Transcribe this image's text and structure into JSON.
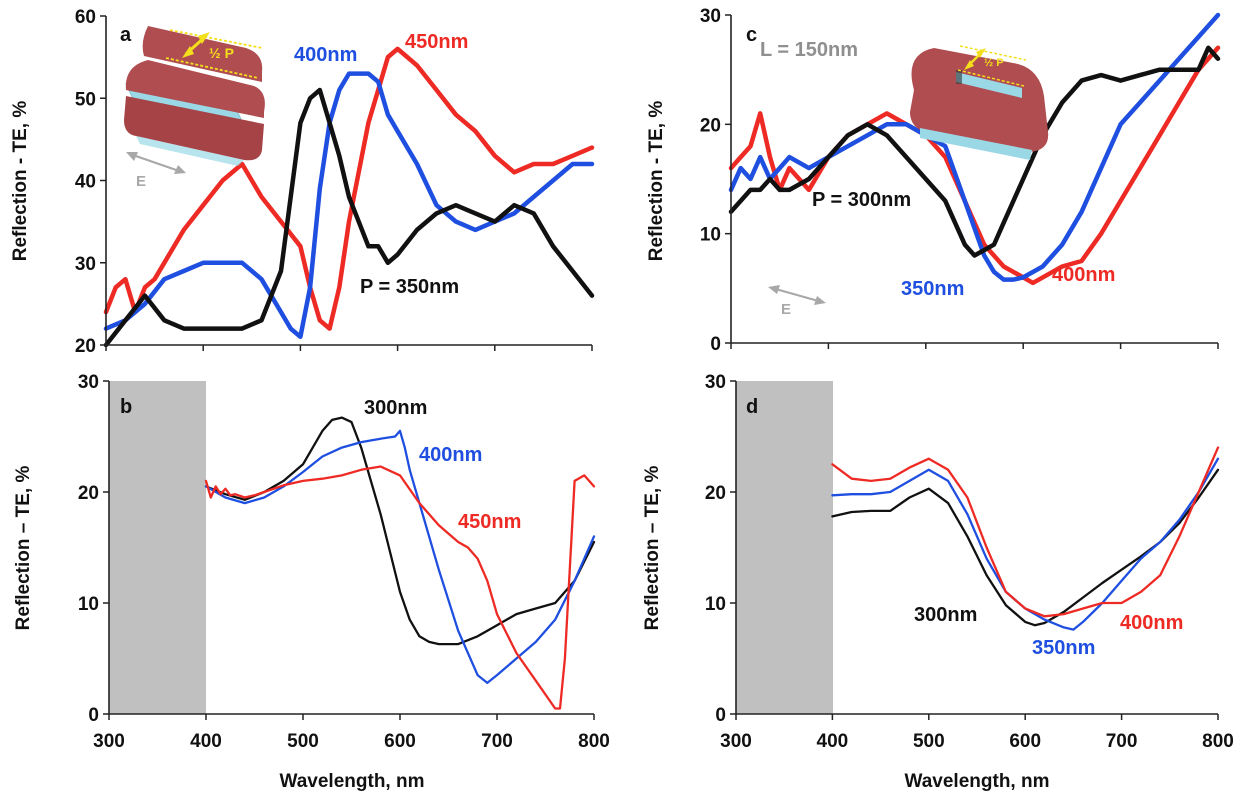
{
  "chart_data": [
    {
      "panel": "a",
      "type": "line",
      "ylabel": "Reflection - TE, %",
      "xlabel": "",
      "xlim": [
        300,
        800
      ],
      "ylim": [
        20,
        60
      ],
      "xticks": [
        "300",
        "400",
        "500",
        "600",
        "700",
        "800"
      ],
      "yticks": [
        "20",
        "30",
        "40",
        "50",
        "60"
      ],
      "x_tick_labels_visible": false,
      "inset": {
        "polarization": "E",
        "dimension": "½ P"
      },
      "series": [
        {
          "label": "450nm",
          "color": "#ee2a24",
          "x": [
            300,
            310,
            320,
            330,
            340,
            350,
            360,
            380,
            400,
            420,
            440,
            460,
            480,
            500,
            510,
            520,
            530,
            540,
            550,
            560,
            570,
            580,
            590,
            600,
            610,
            620,
            640,
            660,
            680,
            700,
            720,
            740,
            760,
            780,
            800
          ],
          "y": [
            24,
            27,
            28,
            24,
            27,
            28,
            30,
            34,
            37,
            40,
            42,
            38,
            35,
            32,
            27,
            23,
            22,
            27,
            35,
            41,
            47,
            51,
            55,
            56,
            55,
            54,
            51,
            48,
            46,
            43,
            41,
            42,
            42,
            43,
            44
          ]
        },
        {
          "label": "400nm",
          "color": "#1f4fe0",
          "x": [
            300,
            320,
            340,
            360,
            380,
            400,
            420,
            440,
            460,
            480,
            490,
            500,
            510,
            520,
            530,
            540,
            550,
            560,
            570,
            580,
            590,
            600,
            620,
            640,
            660,
            680,
            700,
            720,
            740,
            760,
            780,
            800
          ],
          "y": [
            22,
            23,
            25,
            28,
            29,
            30,
            30,
            30,
            28,
            24,
            22,
            21,
            27,
            39,
            47,
            51,
            53,
            53,
            53,
            52,
            48,
            46,
            42,
            37,
            35,
            34,
            35,
            36,
            38,
            40,
            42,
            42
          ]
        },
        {
          "label": "P = 350nm",
          "color": "#111111",
          "x": [
            300,
            320,
            340,
            360,
            380,
            400,
            420,
            440,
            460,
            480,
            490,
            500,
            510,
            520,
            530,
            540,
            550,
            560,
            570,
            580,
            590,
            600,
            620,
            640,
            660,
            680,
            700,
            720,
            740,
            760,
            780,
            800
          ],
          "y": [
            20,
            23,
            26,
            23,
            22,
            22,
            22,
            22,
            23,
            29,
            38,
            47,
            50,
            51,
            47,
            43,
            38,
            35,
            32,
            32,
            30,
            31,
            34,
            36,
            37,
            36,
            35,
            37,
            36,
            32,
            29,
            26
          ]
        }
      ]
    },
    {
      "panel": "b",
      "type": "line",
      "ylabel": "Reflection – TE, %",
      "xlabel": "Wavelength, nm",
      "xlim": [
        300,
        800
      ],
      "ylim": [
        0,
        30
      ],
      "xticks": [
        "300",
        "400",
        "500",
        "600",
        "700",
        "800"
      ],
      "yticks": [
        "0",
        "10",
        "20",
        "30"
      ],
      "shaded_range": [
        300,
        400
      ],
      "series": [
        {
          "label": "300nm",
          "color": "#111111",
          "x": [
            400,
            420,
            440,
            460,
            480,
            500,
            520,
            530,
            540,
            550,
            560,
            570,
            580,
            590,
            600,
            610,
            620,
            630,
            640,
            660,
            680,
            700,
            720,
            740,
            760,
            780,
            800
          ],
          "y": [
            20.5,
            19.8,
            19.3,
            20,
            21,
            22.5,
            25.5,
            26.5,
            26.7,
            26.3,
            24,
            21,
            18,
            14.5,
            11,
            8.5,
            7,
            6.5,
            6.3,
            6.3,
            7,
            8,
            9,
            9.5,
            10,
            12,
            15.5
          ]
        },
        {
          "label": "400nm",
          "color": "#1f4fe0",
          "x": [
            400,
            420,
            440,
            460,
            480,
            500,
            520,
            540,
            560,
            580,
            595,
            600,
            605,
            610,
            620,
            640,
            660,
            680,
            690,
            700,
            720,
            740,
            760,
            780,
            800
          ],
          "y": [
            20.5,
            19.5,
            19,
            19.5,
            20.5,
            21.8,
            23.2,
            24,
            24.5,
            24.8,
            25,
            25.5,
            24,
            22,
            19,
            13,
            7.5,
            3.5,
            2.8,
            3.5,
            5,
            6.5,
            8.5,
            12,
            16
          ]
        },
        {
          "label": "450nm",
          "color": "#ee2a24",
          "x": [
            400,
            405,
            410,
            415,
            420,
            425,
            430,
            440,
            450,
            460,
            480,
            500,
            520,
            540,
            560,
            580,
            600,
            620,
            640,
            660,
            670,
            680,
            690,
            700,
            720,
            740,
            760,
            765,
            770,
            780,
            790,
            800
          ],
          "y": [
            21,
            19.5,
            20.5,
            19.8,
            20.3,
            19.7,
            19.8,
            19.5,
            19.7,
            20,
            20.6,
            21,
            21.2,
            21.5,
            22,
            22.3,
            21.5,
            19,
            17,
            15.5,
            15,
            14,
            12,
            9,
            5.5,
            3,
            0.5,
            0.5,
            5,
            21,
            21.5,
            20.5
          ]
        }
      ]
    },
    {
      "panel": "c",
      "type": "line",
      "ylabel": "Reflection - TE, %",
      "xlabel": "",
      "xlim": [
        300,
        800
      ],
      "ylim": [
        0,
        30
      ],
      "xticks": [
        "300",
        "400",
        "500",
        "600",
        "700",
        "800"
      ],
      "yticks": [
        "0",
        "10",
        "20",
        "30"
      ],
      "x_tick_labels_visible": false,
      "annotation": "L = 150nm",
      "inset": {
        "polarization": "E",
        "dimension": "½ P"
      },
      "series": [
        {
          "label": "400nm",
          "color": "#ee2a24",
          "x": [
            300,
            310,
            320,
            330,
            340,
            350,
            360,
            370,
            380,
            400,
            420,
            440,
            460,
            480,
            500,
            520,
            540,
            560,
            580,
            600,
            610,
            620,
            640,
            660,
            680,
            700,
            720,
            740,
            760,
            780,
            800
          ],
          "y": [
            16,
            17,
            18,
            21,
            17,
            14,
            16,
            15,
            14,
            17,
            19,
            20,
            21,
            20,
            19,
            17,
            13,
            9,
            7,
            6,
            5.5,
            6,
            7,
            7.5,
            10,
            13,
            16,
            19,
            22,
            25,
            27
          ]
        },
        {
          "label": "350nm",
          "color": "#1f4fe0",
          "x": [
            300,
            310,
            320,
            330,
            340,
            350,
            360,
            380,
            400,
            420,
            440,
            460,
            480,
            500,
            520,
            540,
            560,
            570,
            580,
            590,
            600,
            620,
            640,
            660,
            680,
            700,
            720,
            740,
            760,
            780,
            800
          ],
          "y": [
            14,
            16,
            15,
            17,
            15,
            16,
            17,
            16,
            17,
            18,
            19,
            20,
            20,
            19,
            18,
            13,
            8,
            6.5,
            5.8,
            5.8,
            6,
            7,
            9,
            12,
            16,
            20,
            22,
            24,
            26,
            28,
            30
          ]
        },
        {
          "label": "P = 300nm",
          "color": "#111111",
          "x": [
            300,
            310,
            320,
            330,
            340,
            350,
            360,
            380,
            400,
            420,
            440,
            460,
            480,
            500,
            520,
            540,
            550,
            560,
            570,
            580,
            600,
            620,
            640,
            660,
            680,
            700,
            720,
            740,
            760,
            780,
            790,
            800
          ],
          "y": [
            12,
            13,
            14,
            14,
            15,
            14,
            14,
            15,
            17,
            19,
            20,
            19,
            17,
            15,
            13,
            9,
            8,
            8.5,
            9,
            11,
            15,
            19,
            22,
            24,
            24.5,
            24,
            24.5,
            25,
            25,
            25,
            27,
            26
          ]
        }
      ]
    },
    {
      "panel": "d",
      "type": "line",
      "ylabel": "Reflection – TE, %",
      "xlabel": "Wavelength, nm",
      "xlim": [
        300,
        800
      ],
      "ylim": [
        0,
        30
      ],
      "xticks": [
        "300",
        "400",
        "500",
        "600",
        "700",
        "800"
      ],
      "yticks": [
        "0",
        "10",
        "20",
        "30"
      ],
      "shaded_range": [
        300,
        400
      ],
      "series": [
        {
          "label": "300nm",
          "color": "#111111",
          "x": [
            400,
            420,
            440,
            460,
            480,
            500,
            520,
            540,
            560,
            580,
            600,
            610,
            620,
            640,
            660,
            680,
            700,
            720,
            740,
            760,
            780,
            800
          ],
          "y": [
            17.8,
            18.2,
            18.3,
            18.3,
            19.5,
            20.3,
            19,
            16,
            12.5,
            9.8,
            8.3,
            8,
            8.2,
            9.2,
            10.5,
            11.8,
            13,
            14.2,
            15.5,
            17.2,
            19.5,
            22
          ]
        },
        {
          "label": "350nm",
          "color": "#1f4fe0",
          "x": [
            400,
            420,
            440,
            460,
            480,
            500,
            520,
            540,
            560,
            580,
            600,
            620,
            640,
            650,
            660,
            680,
            700,
            720,
            740,
            760,
            780,
            800
          ],
          "y": [
            19.7,
            19.8,
            19.8,
            20,
            21,
            22,
            21,
            18,
            14,
            11,
            9.5,
            8.5,
            7.8,
            7.6,
            8.3,
            10,
            12,
            14,
            15.5,
            17.5,
            20,
            23
          ]
        },
        {
          "label": "400nm",
          "color": "#ee2a24",
          "x": [
            400,
            420,
            440,
            460,
            480,
            500,
            520,
            540,
            560,
            580,
            600,
            620,
            640,
            660,
            680,
            700,
            720,
            740,
            760,
            780,
            800
          ],
          "y": [
            22.5,
            21.2,
            21,
            21.2,
            22.2,
            23,
            22,
            19.5,
            15,
            11,
            9.5,
            8.8,
            9,
            9.5,
            10,
            10,
            11,
            12.5,
            16,
            20,
            24
          ]
        }
      ]
    }
  ],
  "labels": {
    "a": {
      "panel": "a",
      "s1": "450nm",
      "s2": "400nm",
      "s3": "P = 350nm",
      "inset_dim": "½ P",
      "inset_pol": "E"
    },
    "b": {
      "panel": "b",
      "s1": "300nm",
      "s2": "400nm",
      "s3": "450nm"
    },
    "c": {
      "panel": "c",
      "note": "L = 150nm",
      "s1": "P = 300nm",
      "s2": "350nm",
      "s3": "400nm",
      "inset_dim": "½ P",
      "inset_pol": "E"
    },
    "d": {
      "panel": "d",
      "s1": "300nm",
      "s2": "350nm",
      "s3": "400nm"
    }
  },
  "axis_titles": {
    "a_y": "Reflection - TE, %",
    "b_y": "Reflection – TE, %",
    "c_y": "Reflection - TE, %",
    "d_y": "Reflection – TE, %",
    "b_x": "Wavelength, nm",
    "d_x": "Wavelength, nm"
  },
  "colors": {
    "red": "#ee2a24",
    "blue": "#1f4fe0",
    "black": "#111111",
    "shade": "#c0c0c0",
    "note_gray": "#8f8f8f",
    "inset_arrow": "#f4df1c"
  }
}
